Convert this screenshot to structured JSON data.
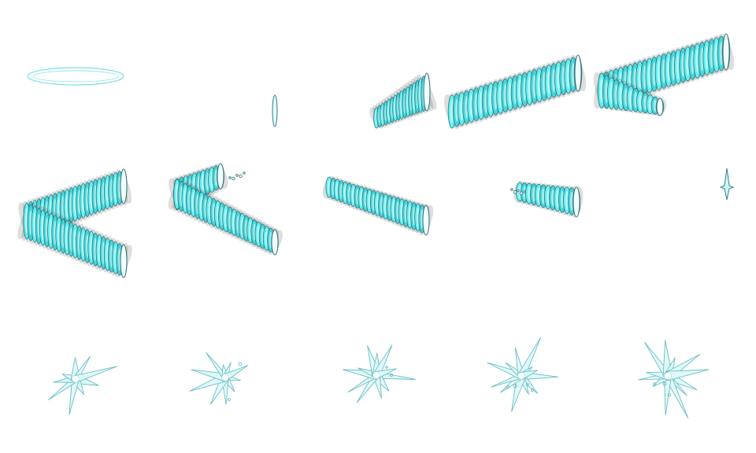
{
  "sheet": {
    "type": "sprite-sheet",
    "theme_colors": {
      "core": "#f2ffff",
      "glow": "#5ff4f4",
      "mid": "#3fd6dc",
      "edge": "#2f6f76",
      "shadow": "#4a4a4a"
    },
    "rows": [
      {
        "name": "slash-wind-up",
        "frames": [
          "ring",
          "spark",
          "trail-short",
          "trail-medium",
          "trail-hook"
        ]
      },
      {
        "name": "slash-swing",
        "frames": [
          "wave-full",
          "wave-half",
          "wave-thin",
          "wave-fade",
          "wave-vanish"
        ]
      },
      {
        "name": "impact",
        "frames": [
          "burst-1",
          "burst-2",
          "burst-3",
          "burst-4",
          "burst-5"
        ]
      }
    ]
  }
}
